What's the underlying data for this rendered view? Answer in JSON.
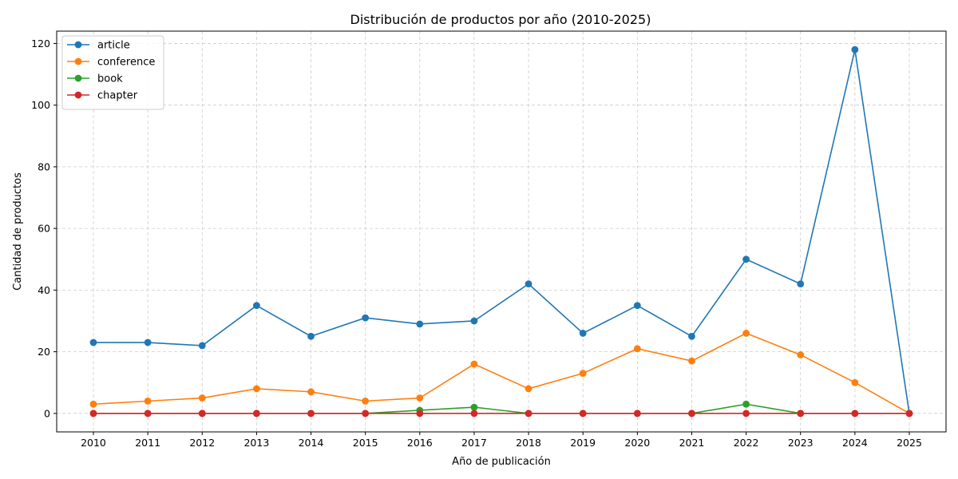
{
  "chart_data": {
    "type": "line",
    "title": "Distribución de productos por año (2010-2025)",
    "xlabel": "Año de publicación",
    "ylabel": "Cantidad de productos",
    "x": [
      2010,
      2011,
      2012,
      2013,
      2014,
      2015,
      2016,
      2017,
      2018,
      2019,
      2020,
      2021,
      2022,
      2023,
      2024,
      2025
    ],
    "xticks": [
      "2010",
      "2011",
      "2012",
      "2013",
      "2014",
      "2015",
      "2016",
      "2017",
      "2018",
      "2019",
      "2020",
      "2021",
      "2022",
      "2023",
      "2024",
      "2025"
    ],
    "yticks": [
      "0",
      "20",
      "40",
      "60",
      "80",
      "100",
      "120"
    ],
    "ylim": [
      -6,
      124
    ],
    "grid": true,
    "legend_position": "top-left",
    "series": [
      {
        "name": "article",
        "color": "#1f77b4",
        "values": [
          23,
          23,
          22,
          35,
          25,
          31,
          29,
          30,
          42,
          26,
          35,
          25,
          50,
          42,
          118,
          0
        ]
      },
      {
        "name": "conference",
        "color": "#ff7f0e",
        "values": [
          3,
          4,
          5,
          8,
          7,
          4,
          5,
          16,
          8,
          13,
          21,
          17,
          26,
          19,
          10,
          0
        ]
      },
      {
        "name": "book",
        "color": "#2ca02c",
        "values": [
          0,
          0,
          0,
          0,
          0,
          0,
          1,
          2,
          0,
          0,
          0,
          0,
          3,
          0,
          0,
          0
        ]
      },
      {
        "name": "chapter",
        "color": "#d62728",
        "values": [
          0,
          0,
          0,
          0,
          0,
          0,
          0,
          0,
          0,
          0,
          0,
          0,
          0,
          0,
          0,
          0
        ]
      }
    ]
  }
}
